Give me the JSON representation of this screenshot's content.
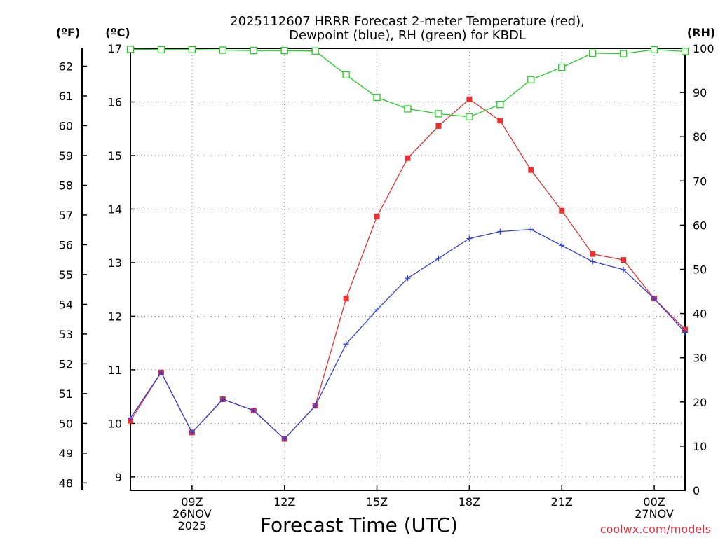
{
  "chart_data": {
    "type": "line",
    "title_line1": "2025112607 HRRR Forecast 2-meter Temperature (red),",
    "title_line2": "Dewpoint (blue), RH (green) for KBDL",
    "xlabel": "Forecast Time (UTC)",
    "source": "coolwx.com/models",
    "unit_f": "(ºF)",
    "unit_c": "(ºC)",
    "unit_rh": "(RH)",
    "x_hours": [
      7,
      8,
      9,
      10,
      11,
      12,
      13,
      14,
      15,
      16,
      17,
      18,
      19,
      20,
      21,
      22,
      23,
      24,
      25
    ],
    "xlim": [
      7,
      25
    ],
    "x_ticks": [
      {
        "hour": 9,
        "l1": "09Z",
        "l2": "26NOV",
        "l3": "2025"
      },
      {
        "hour": 12,
        "l1": "12Z",
        "l2": "",
        "l3": ""
      },
      {
        "hour": 15,
        "l1": "15Z",
        "l2": "",
        "l3": ""
      },
      {
        "hour": 18,
        "l1": "18Z",
        "l2": "",
        "l3": ""
      },
      {
        "hour": 21,
        "l1": "21Z",
        "l2": "",
        "l3": ""
      },
      {
        "hour": 24,
        "l1": "00Z",
        "l2": "27NOV",
        "l3": ""
      }
    ],
    "ylim_c": [
      8.75,
      17.0
    ],
    "yticks_c": [
      9,
      10,
      11,
      12,
      13,
      14,
      15,
      16,
      17
    ],
    "yticks_f": [
      48,
      49,
      50,
      51,
      52,
      53,
      54,
      55,
      56,
      57,
      58,
      59,
      60,
      61,
      62
    ],
    "ylim_rh": [
      0,
      100
    ],
    "yticks_rh": [
      0,
      10,
      20,
      30,
      40,
      50,
      60,
      70,
      80,
      90,
      100
    ],
    "series": [
      {
        "name": "Temperature",
        "color": "#e83030",
        "axis": "c",
        "marker": "square-filled",
        "values": [
          10.05,
          10.95,
          9.83,
          10.45,
          10.24,
          9.71,
          10.33,
          12.33,
          13.86,
          14.95,
          15.55,
          16.05,
          15.65,
          14.73,
          13.97,
          13.16,
          13.05,
          12.33,
          11.75
        ]
      },
      {
        "name": "Dewpoint",
        "color": "#2f3fe0",
        "axis": "c",
        "marker": "plus",
        "values": [
          10.1,
          10.95,
          9.83,
          10.45,
          10.24,
          9.71,
          10.33,
          11.48,
          12.12,
          12.71,
          13.08,
          13.45,
          13.58,
          13.62,
          13.32,
          13.02,
          12.87,
          12.33,
          11.7
        ]
      },
      {
        "name": "RH",
        "color": "#22d022",
        "axis": "rh",
        "marker": "square-open",
        "values": [
          99.8,
          99.7,
          99.7,
          99.6,
          99.5,
          99.5,
          99.4,
          94.0,
          88.9,
          86.3,
          85.2,
          84.5,
          87.3,
          92.9,
          95.7,
          98.9,
          98.8,
          99.7,
          99.3
        ]
      }
    ]
  }
}
